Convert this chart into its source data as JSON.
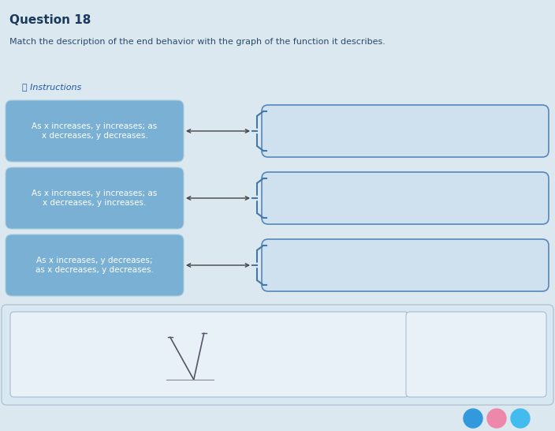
{
  "title": "Question 18",
  "subtitle": "Match the description of the end behavior with the graph of the function it describes.",
  "instructions_label": "ⓘ Instructions",
  "left_boxes": [
    "As x increases, y increases; as\nx decreases, y decreases.",
    "As x increases, y increases; as\nx decreases, y increases.",
    "As x increases, y decreases;\nas x decreases, y decreases."
  ],
  "bg_color": "#dce8f0",
  "left_box_color": "#7ab0d4",
  "right_box_color": "#cfe0ef",
  "title_color": "#1a3a5c",
  "subtitle_color": "#2a4a6c",
  "instructions_color": "#2255aa",
  "arrow_color": "#444444",
  "brace_color": "#4477aa",
  "right_box_border_color": "#5588bb",
  "bottom_outer_color": "#d8e8f2",
  "bottom_inner_color": "#e8f0f8",
  "font_size_title": 11,
  "font_size_subtitle": 8,
  "font_size_box": 7.5,
  "font_size_instructions": 8
}
